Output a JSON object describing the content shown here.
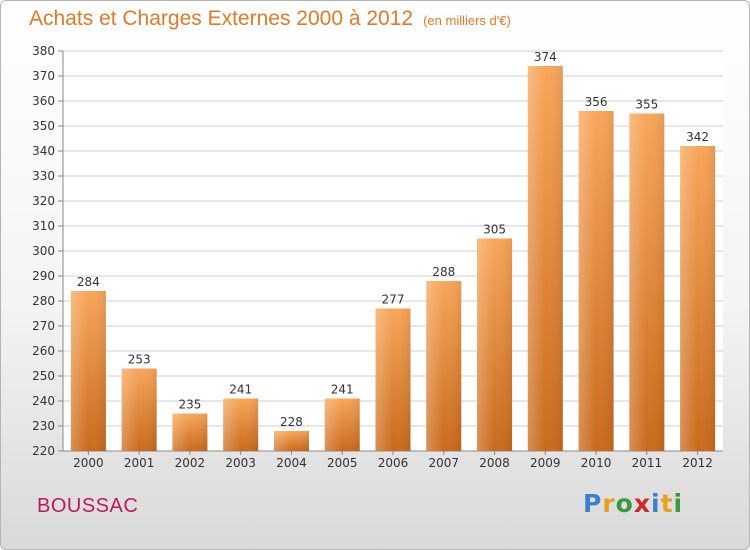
{
  "header": {
    "title": "Achats et Charges Externes 2000 à 2012",
    "subtitle": "(en milliers d'€)"
  },
  "footer": {
    "town": "BOUSSAC",
    "brand": "Proxiti",
    "brand_letters": [
      {
        "ch": "P",
        "color": "#3a7fd0"
      },
      {
        "ch": "r",
        "color": "#e8a020"
      },
      {
        "ch": "o",
        "color": "#3a9a3a"
      },
      {
        "ch": "x",
        "color": "#d02828"
      },
      {
        "ch": "i",
        "color": "#3a7fd0"
      },
      {
        "ch": "t",
        "color": "#e8a020"
      },
      {
        "ch": "i",
        "color": "#3a9a3a"
      }
    ]
  },
  "colors": {
    "bar_top": "#f8a65a",
    "bar_bottom": "#c96a1c",
    "grid": "#cfcfcf",
    "title": "#e07a2a"
  },
  "chart_data": {
    "type": "bar",
    "title": "Achats et Charges Externes 2000 à 2012",
    "subtitle": "(en milliers d'€)",
    "categories": [
      "2000",
      "2001",
      "2002",
      "2003",
      "2004",
      "2005",
      "2006",
      "2007",
      "2008",
      "2009",
      "2010",
      "2011",
      "2012"
    ],
    "values": [
      284,
      253,
      235,
      241,
      228,
      241,
      277,
      288,
      305,
      374,
      356,
      355,
      342
    ],
    "ylim": [
      220,
      380
    ],
    "yticks": [
      220,
      230,
      240,
      250,
      260,
      270,
      280,
      290,
      300,
      310,
      320,
      330,
      340,
      350,
      360,
      370,
      380
    ],
    "grid": true,
    "legend": "none"
  }
}
